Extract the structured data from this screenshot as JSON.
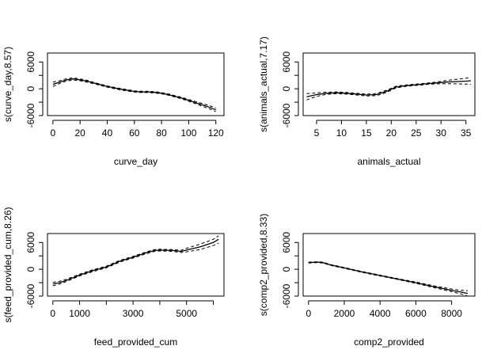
{
  "chart_data": [
    {
      "type": "line",
      "xlabel": "curve_day",
      "ylabel": "s(curve_day,8.57)",
      "xlim": [
        -4,
        126
      ],
      "ylim": [
        -6000,
        8000
      ],
      "xticks": [
        0,
        20,
        40,
        60,
        80,
        100,
        120
      ],
      "yticks": [
        -6000,
        -3000,
        0,
        3000,
        6000
      ],
      "yticks_labeled": [
        -6000,
        0,
        6000
      ],
      "x": [
        0,
        5,
        10,
        15,
        20,
        25,
        30,
        40,
        50,
        60,
        65,
        70,
        75,
        80,
        85,
        90,
        95,
        100,
        105,
        110,
        115,
        120
      ],
      "fit": [
        1000,
        1500,
        2000,
        2200,
        2000,
        1700,
        1300,
        500,
        -100,
        -600,
        -700,
        -700,
        -800,
        -1000,
        -1300,
        -1700,
        -2100,
        -2600,
        -3100,
        -3600,
        -4100,
        -4700
      ],
      "lower": [
        500,
        1200,
        1750,
        1950,
        1800,
        1500,
        1150,
        350,
        -250,
        -750,
        -850,
        -850,
        -950,
        -1150,
        -1450,
        -1850,
        -2300,
        -2800,
        -3350,
        -3900,
        -4450,
        -5100
      ],
      "upper": [
        1500,
        1800,
        2250,
        2450,
        2200,
        1900,
        1450,
        650,
        50,
        -450,
        -550,
        -550,
        -650,
        -850,
        -1150,
        -1550,
        -1900,
        -2400,
        -2850,
        -3300,
        -3750,
        -4300
      ]
    },
    {
      "type": "line",
      "xlabel": "animals_actual",
      "ylabel": "s(animals_actual,7.17)",
      "xlim": [
        2.3,
        36.8
      ],
      "ylim": [
        -6000,
        8000
      ],
      "xticks": [
        5,
        10,
        15,
        20,
        25,
        30,
        35
      ],
      "yticks": [
        -6000,
        -3000,
        0,
        3000,
        6000
      ],
      "yticks_labeled": [
        -6000,
        0,
        6000
      ],
      "x": [
        3,
        5,
        7,
        9,
        11,
        13,
        15,
        17,
        19,
        21,
        23,
        25,
        27,
        29,
        31,
        33,
        35,
        36
      ],
      "fit": [
        -1800,
        -1300,
        -1000,
        -900,
        -1000,
        -1200,
        -1400,
        -1300,
        -600,
        400,
        700,
        900,
        1100,
        1300,
        1500,
        1600,
        1700,
        1800
      ],
      "lower": [
        -2500,
        -1700,
        -1250,
        -1100,
        -1200,
        -1400,
        -1600,
        -1550,
        -850,
        200,
        550,
        750,
        950,
        1100,
        1150,
        1100,
        1050,
        1000
      ],
      "upper": [
        -1100,
        -900,
        -750,
        -700,
        -800,
        -1000,
        -1200,
        -1050,
        -350,
        600,
        850,
        1050,
        1250,
        1500,
        1850,
        2100,
        2350,
        2600
      ]
    },
    {
      "type": "line",
      "xlabel": "feed_provided_cum",
      "ylabel": "s(feed_provided_cum,8.26)",
      "xlim": [
        -200,
        6400
      ],
      "ylim": [
        -6000,
        8000
      ],
      "xticks": [
        0,
        1000,
        2000,
        3000,
        4000,
        5000,
        6000
      ],
      "xticks_labeled": [
        0,
        1000,
        3000,
        5000
      ],
      "yticks": [
        -6000,
        -3000,
        0,
        3000,
        6000
      ],
      "yticks_labeled": [
        -6000,
        0,
        6000
      ],
      "x": [
        0,
        250,
        500,
        1000,
        1500,
        2000,
        2500,
        3000,
        3500,
        3800,
        4000,
        4500,
        4800,
        5000,
        5500,
        6000,
        6200
      ],
      "fit": [
        -3300,
        -3000,
        -2500,
        -1300,
        -300,
        500,
        1800,
        2700,
        3700,
        4200,
        4300,
        4200,
        4000,
        4300,
        5000,
        6000,
        6700
      ],
      "lower": [
        -3700,
        -3300,
        -2750,
        -1500,
        -500,
        300,
        1600,
        2500,
        3500,
        4000,
        4100,
        4000,
        3750,
        3900,
        4400,
        5300,
        5900
      ],
      "upper": [
        -2900,
        -2700,
        -2250,
        -1100,
        -100,
        700,
        2000,
        2900,
        3900,
        4400,
        4500,
        4400,
        4250,
        4700,
        5600,
        6700,
        7500
      ]
    },
    {
      "type": "line",
      "xlabel": "comp2_provided",
      "ylabel": "s(comp2_provided,8.33)",
      "xlim": [
        -300,
        9300
      ],
      "ylim": [
        -6000,
        8000
      ],
      "xticks": [
        0,
        2000,
        4000,
        6000,
        8000
      ],
      "yticks": [
        -6000,
        -3000,
        0,
        3000,
        6000
      ],
      "yticks_labeled": [
        -6000,
        0,
        6000
      ],
      "x": [
        0,
        500,
        800,
        1200,
        2000,
        3000,
        4000,
        5000,
        6000,
        7000,
        8000,
        8500,
        8900
      ],
      "fit": [
        1500,
        1600,
        1500,
        1000,
        300,
        -600,
        -1400,
        -2200,
        -3000,
        -3900,
        -4700,
        -5100,
        -5400
      ],
      "lower": [
        1400,
        1500,
        1400,
        900,
        200,
        -700,
        -1500,
        -2300,
        -3150,
        -4100,
        -5000,
        -5500,
        -6000
      ],
      "upper": [
        1600,
        1700,
        1600,
        1100,
        400,
        -500,
        -1300,
        -2100,
        -2850,
        -3700,
        -4400,
        -4700,
        -4800
      ]
    }
  ]
}
